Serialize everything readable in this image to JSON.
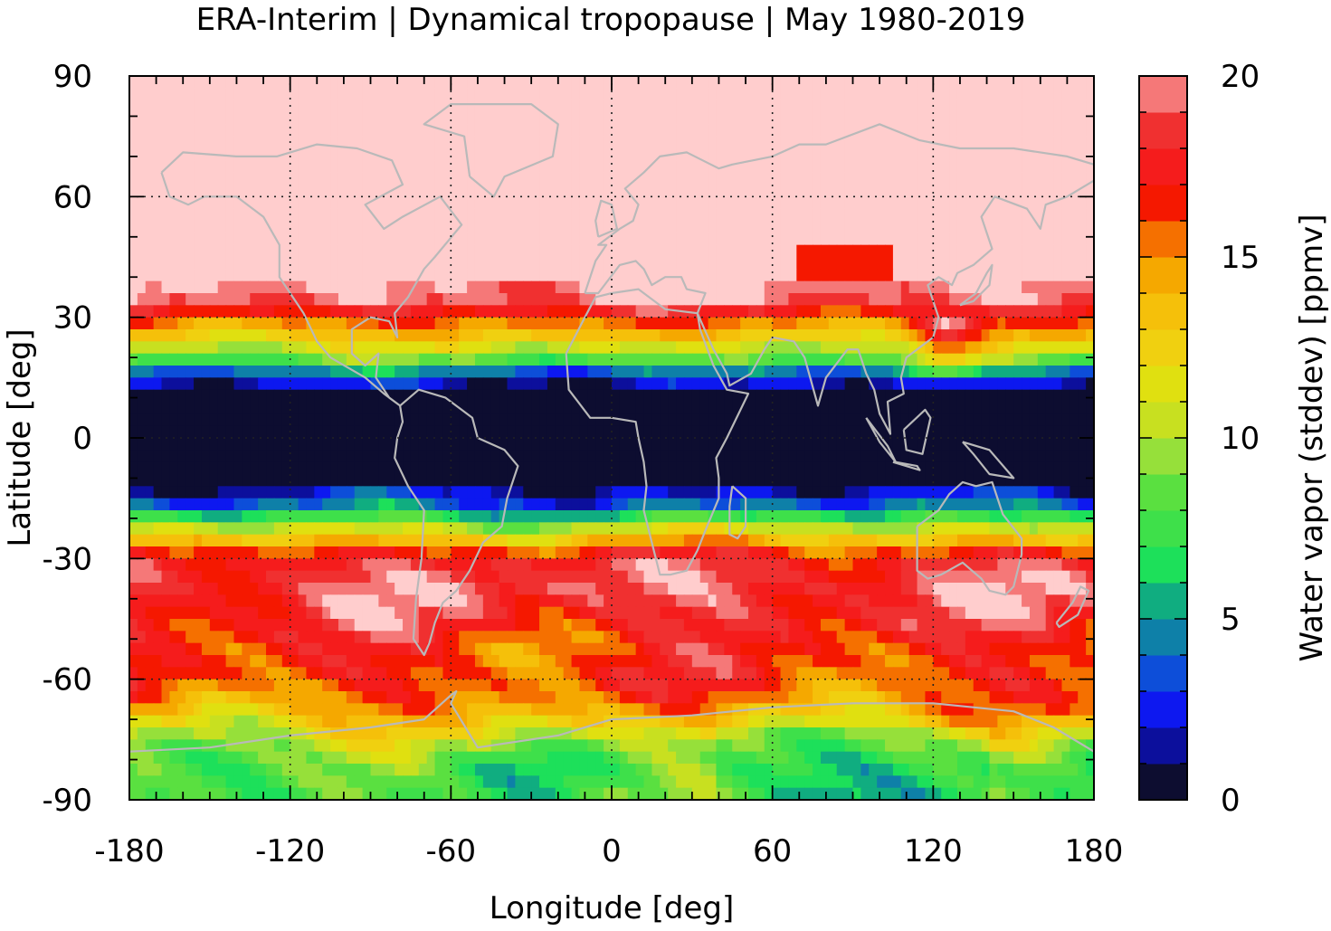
{
  "chart_data": {
    "type": "heatmap",
    "title": "ERA-Interim | Dynamical tropopause | May 1980-2019",
    "xlabel": "Longitude [deg]",
    "ylabel": "Latitude [deg]",
    "xlim": [
      -180,
      180
    ],
    "ylim": [
      -90,
      90
    ],
    "xticks": [
      "-180",
      "-120",
      "-60",
      "0",
      "60",
      "120",
      "180"
    ],
    "yticks": [
      "90",
      "60",
      "30",
      "0",
      "-30",
      "-60",
      "-90"
    ],
    "grid": "dotted",
    "coastlines": true,
    "colorbar": {
      "label": "Water vapor (stddev) [ppmv]",
      "range": [
        0,
        20
      ],
      "ticks": [
        "20",
        "15",
        "10",
        "5",
        "0"
      ],
      "levels": [
        0,
        1,
        2,
        3,
        4,
        5,
        6,
        7,
        8,
        9,
        10,
        11,
        12,
        13,
        14,
        15,
        16,
        17,
        18,
        19,
        20
      ],
      "colors": [
        "#0d0d30",
        "#0c0f9c",
        "#0d18f0",
        "#0d4ed9",
        "#0e80a8",
        "#10ad80",
        "#1de05a",
        "#3ee04a",
        "#5ae040",
        "#96e03a",
        "#c8e020",
        "#e0e010",
        "#f0d010",
        "#f5c00a",
        "#f5a800",
        "#f57000",
        "#f51800",
        "#f51c1c",
        "#f03030",
        "#f57878",
        "#ffcdcd"
      ]
    },
    "latitude_profile": {
      "lat": [
        90,
        80,
        70,
        60,
        50,
        45,
        40,
        36,
        33,
        31,
        28,
        25,
        22,
        19,
        17,
        15,
        12,
        8,
        0,
        -8,
        -12,
        -15,
        -18,
        -20,
        -22,
        -25,
        -27,
        -29,
        -32,
        -38,
        -45,
        -52,
        -60,
        -66,
        -70,
        -74,
        -78,
        -82,
        -86,
        -90
      ],
      "value": [
        20,
        20,
        20,
        20,
        20,
        20,
        20,
        20,
        19,
        17,
        15,
        13,
        10.5,
        8,
        5,
        2.5,
        1.2,
        0.5,
        0.3,
        0.4,
        1.2,
        2.5,
        5,
        7.5,
        10,
        13,
        15.5,
        17,
        18.5,
        19,
        18,
        16.5,
        16.5,
        15,
        13,
        11,
        9,
        8,
        8,
        8
      ]
    },
    "annotations": [
      "pink high-variance patches near 110-140E, 15-30N",
      "red patch near 75-100E, 45N"
    ]
  }
}
